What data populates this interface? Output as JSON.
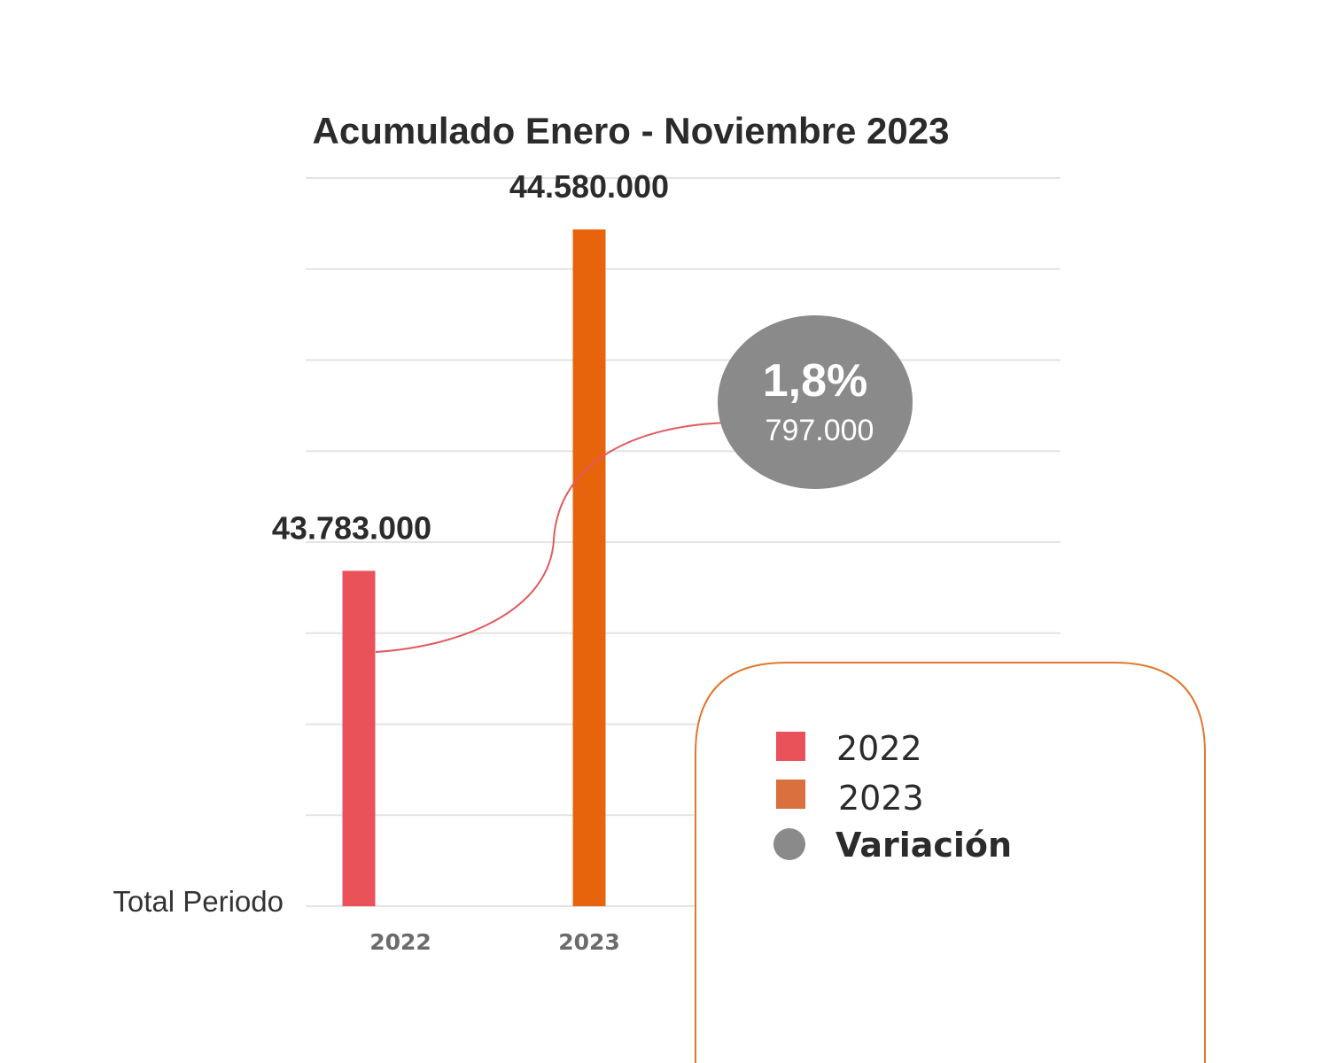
{
  "chart_data": {
    "type": "bar",
    "title": "Acumulado Enero - Noviembre 2023",
    "row_label": "Total Periodo",
    "categories": [
      "2022",
      "2023"
    ],
    "series": [
      {
        "name": "2022",
        "values": [
          43783000,
          null
        ],
        "value_label": "43.783.000",
        "color": "#ea525a"
      },
      {
        "name": "2023",
        "values": [
          null,
          44580000
        ],
        "value_label": "44.580.000",
        "color": "#e8640c"
      }
    ],
    "ylim": [
      43000000,
      44700000
    ],
    "grid": true,
    "variation": {
      "percent_label": "1,8%",
      "absolute_label": "797.000",
      "color": "#8a8a8a",
      "line_color": "#e05a5f"
    },
    "legend": {
      "placement": "bottom-right",
      "border_color": "#e2782f",
      "items": [
        {
          "label": "2022",
          "color": "#ea525a",
          "shape": "square"
        },
        {
          "label": "2023",
          "color": "#d9703d",
          "shape": "square"
        },
        {
          "label": "Variación",
          "color": "#8a8a8a",
          "shape": "circle"
        }
      ]
    }
  }
}
